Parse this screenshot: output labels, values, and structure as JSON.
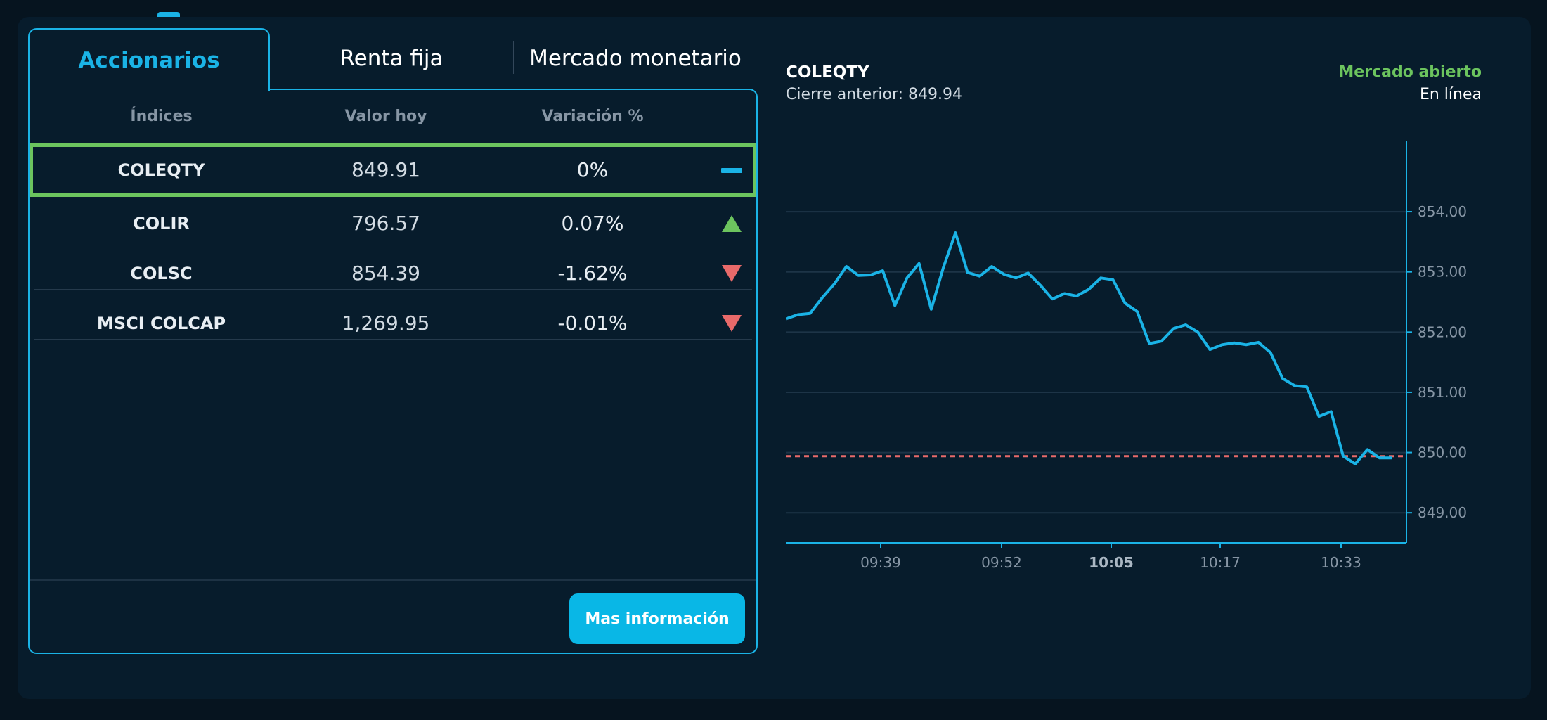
{
  "tabs": [
    {
      "label": "Accionarios",
      "active": true
    },
    {
      "label": "Renta fija",
      "active": false
    },
    {
      "label": "Mercado monetario",
      "active": false
    }
  ],
  "table": {
    "headers": [
      "Índices",
      "Valor hoy",
      "Variación %"
    ],
    "rows": [
      {
        "name": "COLEQTY",
        "value": "849.91",
        "change": "0%",
        "trend": "flat",
        "selected": true
      },
      {
        "name": "COLIR",
        "value": "796.57",
        "change": "0.07%",
        "trend": "up",
        "selected": false
      },
      {
        "name": "COLSC",
        "value": "854.39",
        "change": "-1.62%",
        "trend": "down",
        "selected": false
      },
      {
        "name": "MSCI COLCAP",
        "value": "1,269.95",
        "change": "-0.01%",
        "trend": "down",
        "selected": false
      }
    ]
  },
  "more_button": {
    "label": "Mas información"
  },
  "chart_header": {
    "symbol": "COLEQTY",
    "previous_close": "Cierre anterior: 849.94",
    "market_status": "Mercado abierto",
    "connection": "En línea"
  },
  "colors": {
    "accent": "#1ab3e6",
    "positive": "#6cc45e",
    "negative": "#e86a6a",
    "reference_line": "#e86a6a",
    "background": "#071c2c"
  },
  "chart_data": {
    "type": "line",
    "title": "",
    "xlabel": "",
    "ylabel": "",
    "x_ticks": [
      "09:39",
      "09:52",
      "10:05",
      "10:17",
      "10:33"
    ],
    "y_ticks": [
      "849.00",
      "850.00",
      "851.00",
      "852.00",
      "853.00",
      "854.00"
    ],
    "ylim": [
      848.5,
      854.9
    ],
    "grid": true,
    "reference_line": {
      "value": 849.94,
      "style": "dashed"
    },
    "series": [
      {
        "values": [
          852.22,
          852.29,
          852.31,
          852.57,
          852.8,
          853.09,
          852.94,
          852.95,
          853.02,
          852.44,
          852.9,
          853.14,
          852.38,
          853.07,
          853.65,
          852.99,
          852.93,
          853.09,
          852.96,
          852.9,
          852.98,
          852.78,
          852.55,
          852.64,
          852.6,
          852.71,
          852.9,
          852.87,
          852.48,
          852.34,
          851.81,
          851.85,
          852.06,
          852.12,
          852.0,
          851.71,
          851.79,
          851.82,
          851.79,
          851.83,
          851.66,
          851.23,
          851.11,
          851.09,
          850.6,
          850.68,
          849.94,
          849.81,
          850.05,
          849.91,
          849.91
        ]
      }
    ]
  }
}
